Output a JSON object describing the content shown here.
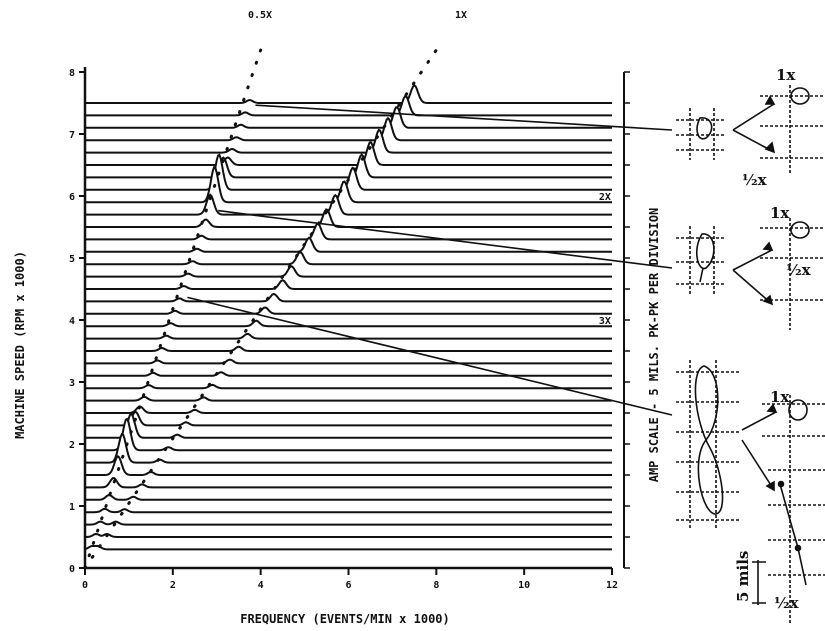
{
  "chart_data": {
    "type": "waterfall",
    "title": "",
    "xlabel": "FREQUENCY (EVENTS/MIN x 1000)",
    "ylabel": "MACHINE SPEED (RPM x 1000)",
    "right_label": "AMP SCALE - 5 MILS. PK-PK PER DIVISION",
    "xlim": [
      0,
      12
    ],
    "ylim": [
      0,
      8
    ],
    "x_ticks": [
      0,
      2,
      4,
      6,
      8,
      10,
      12
    ],
    "x_tick_labels": [
      "0",
      "2",
      "4",
      "6",
      "8",
      "10",
      "12"
    ],
    "y_ticks": [
      0,
      1,
      2,
      3,
      4,
      5,
      6,
      7,
      8
    ],
    "y_tick_labels": [
      "0",
      "1",
      "2",
      "3",
      "4",
      "5",
      "6",
      "7",
      "8"
    ],
    "speed_start": 0.3,
    "speed_end": 7.5,
    "speed_step": 0.2,
    "order_lines": [
      {
        "label": "0.5X",
        "order": 0.5
      },
      {
        "label": "1X",
        "order": 1
      }
    ],
    "inline_labels": [
      {
        "text": "2X",
        "x": 11.7,
        "y": 6
      },
      {
        "text": "3X",
        "x": 11.7,
        "y": 4
      }
    ],
    "peaks": [
      {
        "order": 0.5,
        "center_rpm": 6.0,
        "width": 0.35,
        "amp": 1.4
      },
      {
        "order": 0.5,
        "center_rpm": 1.85,
        "width": 0.45,
        "amp": 1.15
      },
      {
        "order": 1,
        "center_rpm": 6.5,
        "width": 1.8,
        "amp": 0.8
      }
    ],
    "annotation_speeds": [
      7.4,
      5.7,
      4.3
    ],
    "orbit_labels": {
      "one_x": "1x",
      "half_x": "½x",
      "scale": "5 mils"
    }
  }
}
